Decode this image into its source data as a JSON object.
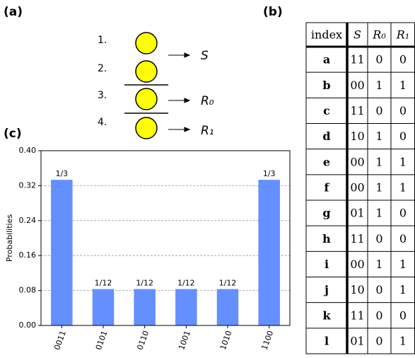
{
  "panel_a": {
    "label": "(a)",
    "items": [
      "1.",
      "2.",
      "3.",
      "4."
    ],
    "outputs": [
      "S",
      "R₀",
      "R₁"
    ]
  },
  "panel_b": {
    "label": "(b)",
    "table": {
      "header": [
        "index",
        "S",
        "R₀",
        "R₁"
      ],
      "rows": [
        [
          "a",
          "11",
          "0",
          "0"
        ],
        [
          "b",
          "00",
          "1",
          "1"
        ],
        [
          "c",
          "11",
          "0",
          "0"
        ],
        [
          "d",
          "10",
          "1",
          "0"
        ],
        [
          "e",
          "00",
          "1",
          "1"
        ],
        [
          "f",
          "00",
          "1",
          "1"
        ],
        [
          "g",
          "01",
          "1",
          "0"
        ],
        [
          "h",
          "11",
          "0",
          "0"
        ],
        [
          "i",
          "00",
          "1",
          "1"
        ],
        [
          "j",
          "10",
          "0",
          "1"
        ],
        [
          "k",
          "11",
          "0",
          "0"
        ],
        [
          "l",
          "01",
          "0",
          "1"
        ]
      ]
    }
  },
  "panel_c": {
    "label": "(c)"
  },
  "chart_data": {
    "type": "bar",
    "ylabel": "Probabilities",
    "categories": [
      "0011",
      "0101",
      "0110",
      "1001",
      "1010",
      "1100"
    ],
    "values": [
      0.3333,
      0.0833,
      0.0833,
      0.0833,
      0.0833,
      0.3333
    ],
    "value_labels": [
      "1/3",
      "1/12",
      "1/12",
      "1/12",
      "1/12",
      "1/3"
    ],
    "color": "#648fff",
    "ylim": [
      0,
      0.4
    ],
    "yticks": [
      {
        "value": 0,
        "label": "0.00"
      },
      {
        "value": 0.08,
        "label": "0.08"
      },
      {
        "value": 0.16,
        "label": "0.16"
      },
      {
        "value": 0.24,
        "label": "0.24"
      },
      {
        "value": 0.32,
        "label": "0.32"
      },
      {
        "value": 0.4,
        "label": "0.40"
      }
    ],
    "grid": true
  }
}
